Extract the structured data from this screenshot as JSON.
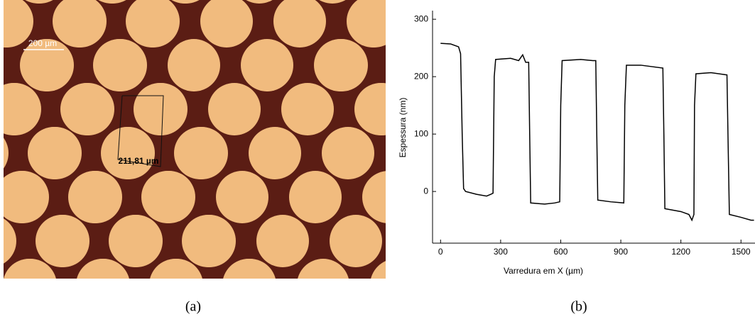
{
  "image_a": {
    "scale_label": "200 µm",
    "measure_label": "211,81 µm",
    "caption": "(a)"
  },
  "chart_data": {
    "type": "line",
    "caption": "(b)",
    "x_label": "Varredura em X (µm)",
    "y_label": "Espessura (nm)",
    "xlim": [
      -40,
      1570
    ],
    "ylim": [
      -90,
      315
    ],
    "xticks": [
      0,
      300,
      600,
      900,
      1200,
      1500
    ],
    "yticks": [
      0,
      100,
      200,
      300
    ],
    "x": [
      0,
      50,
      90,
      100,
      108,
      115,
      125,
      180,
      230,
      250,
      262,
      268,
      275,
      350,
      390,
      410,
      425,
      440,
      445,
      450,
      520,
      570,
      595,
      600,
      607,
      700,
      760,
      775,
      780,
      785,
      850,
      915,
      920,
      928,
      1000,
      1110,
      1115,
      1120,
      1200,
      1240,
      1255,
      1265,
      1268,
      1275,
      1350,
      1430,
      1435,
      1442,
      1500,
      1550,
      1565
    ],
    "series": [
      {
        "color": "#000000",
        "values": [
          258,
          257,
          252,
          240,
          100,
          5,
          0,
          -5,
          -8,
          -5,
          -3,
          200,
          230,
          232,
          228,
          238,
          225,
          225,
          100,
          -20,
          -22,
          -20,
          -18,
          150,
          228,
          230,
          228,
          228,
          100,
          -15,
          -18,
          -20,
          150,
          220,
          220,
          215,
          100,
          -30,
          -35,
          -40,
          -50,
          -40,
          150,
          205,
          207,
          203,
          100,
          -40,
          -45,
          -50,
          -50
        ]
      }
    ]
  }
}
